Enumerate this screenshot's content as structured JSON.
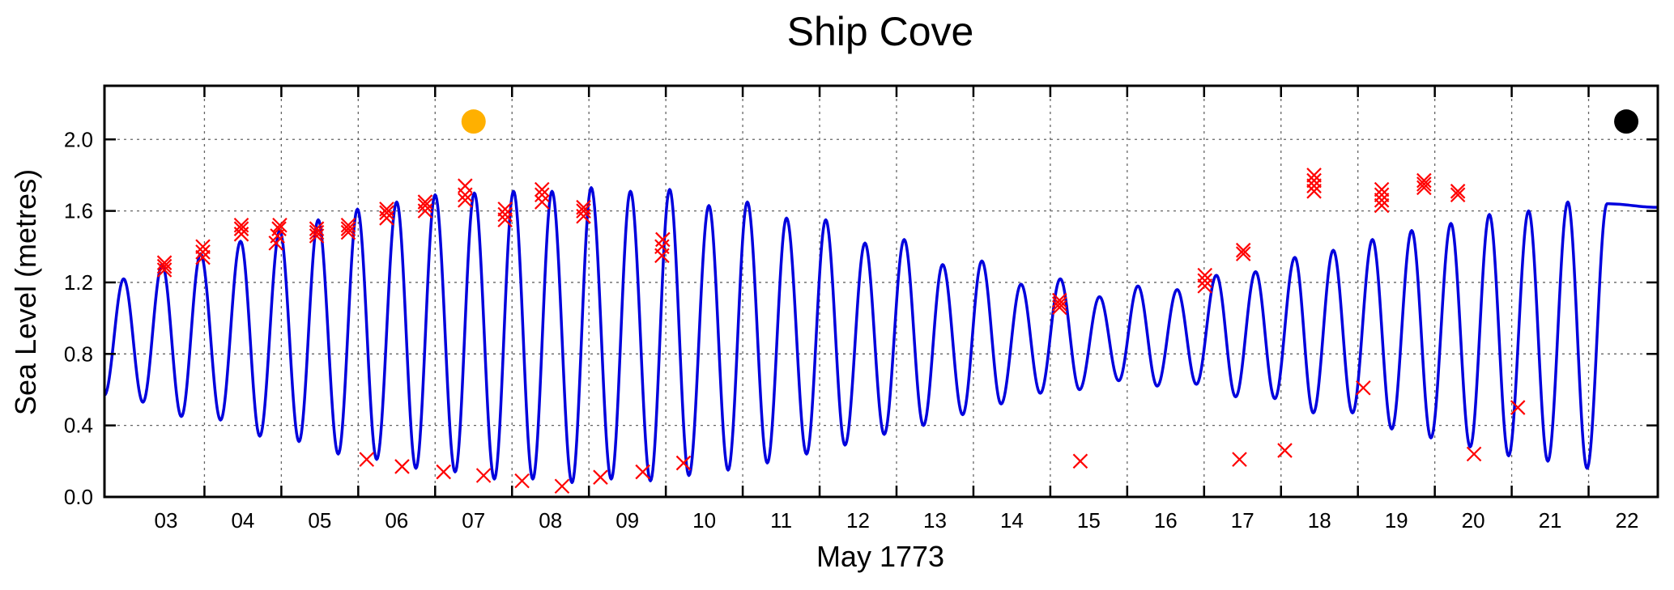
{
  "chart_data": {
    "type": "line",
    "title": "Ship Cove",
    "xlabel": "May 1773",
    "ylabel": "Sea Level (metres)",
    "xlim": [
      2.2,
      22.4
    ],
    "ylim": [
      0.0,
      2.3
    ],
    "grid": true,
    "x_ticks": [
      3,
      4,
      5,
      6,
      7,
      8,
      9,
      10,
      11,
      12,
      13,
      14,
      15,
      16,
      17,
      18,
      19,
      20,
      21,
      22
    ],
    "x_tick_labels": [
      "03",
      "04",
      "05",
      "06",
      "07",
      "08",
      "09",
      "10",
      "11",
      "12",
      "13",
      "14",
      "15",
      "16",
      "17",
      "18",
      "19",
      "20",
      "21",
      "22"
    ],
    "y_ticks": [
      0.0,
      0.4,
      0.8,
      1.2,
      1.6,
      2.0
    ],
    "y_tick_labels": [
      "0.0",
      "0.4",
      "0.8",
      "1.2",
      "1.6",
      "2.0"
    ],
    "series": [
      {
        "type": "line",
        "color": "#0000dd",
        "high_tides": [
          [
            2.45,
            1.22
          ],
          [
            2.95,
            1.3
          ],
          [
            3.45,
            1.36
          ],
          [
            3.97,
            1.43
          ],
          [
            4.48,
            1.49
          ],
          [
            4.98,
            1.55
          ],
          [
            5.49,
            1.61
          ],
          [
            6.0,
            1.65
          ],
          [
            6.5,
            1.69
          ],
          [
            7.01,
            1.7
          ],
          [
            7.52,
            1.71
          ],
          [
            8.02,
            1.71
          ],
          [
            8.53,
            1.73
          ],
          [
            9.04,
            1.71
          ],
          [
            9.55,
            1.72
          ],
          [
            10.06,
            1.63
          ],
          [
            10.56,
            1.65
          ],
          [
            11.07,
            1.56
          ],
          [
            11.58,
            1.55
          ],
          [
            12.09,
            1.42
          ],
          [
            12.6,
            1.44
          ],
          [
            13.1,
            1.3
          ],
          [
            13.61,
            1.32
          ],
          [
            14.12,
            1.19
          ],
          [
            14.63,
            1.22
          ],
          [
            15.14,
            1.12
          ],
          [
            15.64,
            1.18
          ],
          [
            16.15,
            1.16
          ],
          [
            16.66,
            1.24
          ],
          [
            17.17,
            1.26
          ],
          [
            17.68,
            1.34
          ],
          [
            18.18,
            1.38
          ],
          [
            18.69,
            1.44
          ],
          [
            19.2,
            1.49
          ],
          [
            19.71,
            1.53
          ],
          [
            20.21,
            1.58
          ],
          [
            20.72,
            1.6
          ],
          [
            21.23,
            1.65
          ],
          [
            21.74,
            1.64
          ]
        ],
        "low_tides": [
          [
            2.7,
            0.53
          ],
          [
            3.2,
            0.45
          ],
          [
            3.71,
            0.43
          ],
          [
            4.22,
            0.34
          ],
          [
            4.73,
            0.31
          ],
          [
            5.24,
            0.24
          ],
          [
            5.74,
            0.21
          ],
          [
            6.25,
            0.16
          ],
          [
            6.76,
            0.14
          ],
          [
            7.27,
            0.1
          ],
          [
            7.77,
            0.1
          ],
          [
            8.28,
            0.08
          ],
          [
            8.79,
            0.1
          ],
          [
            9.3,
            0.09
          ],
          [
            9.8,
            0.12
          ],
          [
            10.31,
            0.15
          ],
          [
            10.82,
            0.19
          ],
          [
            11.33,
            0.24
          ],
          [
            11.83,
            0.29
          ],
          [
            12.34,
            0.35
          ],
          [
            12.85,
            0.4
          ],
          [
            13.36,
            0.46
          ],
          [
            13.86,
            0.52
          ],
          [
            14.37,
            0.58
          ],
          [
            14.88,
            0.6
          ],
          [
            15.39,
            0.65
          ],
          [
            15.89,
            0.62
          ],
          [
            16.4,
            0.63
          ],
          [
            16.91,
            0.56
          ],
          [
            17.42,
            0.55
          ],
          [
            17.92,
            0.47
          ],
          [
            18.43,
            0.47
          ],
          [
            18.94,
            0.38
          ],
          [
            19.45,
            0.33
          ],
          [
            19.96,
            0.28
          ],
          [
            20.46,
            0.23
          ],
          [
            20.97,
            0.2
          ],
          [
            21.48,
            0.16
          ]
        ],
        "x_start": [
          2.2,
          0.57
        ],
        "x_end": [
          22.4,
          1.62
        ]
      },
      {
        "type": "scatter",
        "marker": "x",
        "color": "#ff0000",
        "points": [
          [
            2.98,
            1.27
          ],
          [
            2.98,
            1.29
          ],
          [
            2.98,
            1.31
          ],
          [
            3.48,
            1.34
          ],
          [
            3.48,
            1.37
          ],
          [
            3.48,
            1.4
          ],
          [
            3.98,
            1.47
          ],
          [
            3.98,
            1.5
          ],
          [
            3.98,
            1.52
          ],
          [
            4.43,
            1.42
          ],
          [
            4.45,
            1.46
          ],
          [
            4.47,
            1.5
          ],
          [
            4.48,
            1.52
          ],
          [
            4.96,
            1.46
          ],
          [
            4.96,
            1.48
          ],
          [
            4.96,
            1.5
          ],
          [
            5.37,
            1.48
          ],
          [
            5.37,
            1.5
          ],
          [
            5.37,
            1.52
          ],
          [
            5.87,
            1.56
          ],
          [
            5.87,
            1.59
          ],
          [
            5.87,
            1.61
          ],
          [
            6.37,
            1.6
          ],
          [
            6.37,
            1.63
          ],
          [
            6.37,
            1.65
          ],
          [
            6.89,
            1.66
          ],
          [
            6.89,
            1.69
          ],
          [
            6.89,
            1.74
          ],
          [
            7.41,
            1.55
          ],
          [
            7.41,
            1.58
          ],
          [
            7.41,
            1.61
          ],
          [
            7.89,
            1.65
          ],
          [
            7.89,
            1.69
          ],
          [
            7.89,
            1.72
          ],
          [
            8.43,
            1.57
          ],
          [
            8.43,
            1.6
          ],
          [
            8.43,
            1.62
          ],
          [
            9.45,
            1.35
          ],
          [
            9.45,
            1.4
          ],
          [
            9.46,
            1.44
          ],
          [
            14.62,
            1.06
          ],
          [
            14.62,
            1.08
          ],
          [
            14.62,
            1.1
          ],
          [
            16.51,
            1.18
          ],
          [
            16.51,
            1.21
          ],
          [
            16.51,
            1.24
          ],
          [
            17.01,
            1.36
          ],
          [
            17.01,
            1.38
          ],
          [
            17.93,
            1.71
          ],
          [
            17.93,
            1.74
          ],
          [
            17.93,
            1.77
          ],
          [
            17.93,
            1.8
          ],
          [
            18.81,
            1.63
          ],
          [
            18.81,
            1.66
          ],
          [
            18.81,
            1.69
          ],
          [
            18.81,
            1.72
          ],
          [
            19.36,
            1.73
          ],
          [
            19.36,
            1.75
          ],
          [
            19.36,
            1.77
          ],
          [
            19.8,
            1.69
          ],
          [
            19.8,
            1.71
          ],
          [
            5.61,
            0.21
          ],
          [
            6.07,
            0.17
          ],
          [
            6.61,
            0.14
          ],
          [
            7.13,
            0.12
          ],
          [
            7.63,
            0.09
          ],
          [
            8.15,
            0.06
          ],
          [
            8.65,
            0.11
          ],
          [
            9.2,
            0.14
          ],
          [
            9.73,
            0.19
          ],
          [
            14.89,
            0.2
          ],
          [
            16.96,
            0.21
          ],
          [
            17.55,
            0.26
          ],
          [
            18.57,
            0.61
          ],
          [
            20.01,
            0.24
          ],
          [
            20.58,
            0.5
          ]
        ]
      },
      {
        "type": "scatter",
        "marker": "circle",
        "color": "#ffb000",
        "points": [
          [
            7.0,
            2.1
          ]
        ]
      },
      {
        "type": "scatter",
        "marker": "circle",
        "color": "#000000",
        "points": [
          [
            21.99,
            2.1
          ]
        ]
      }
    ]
  }
}
